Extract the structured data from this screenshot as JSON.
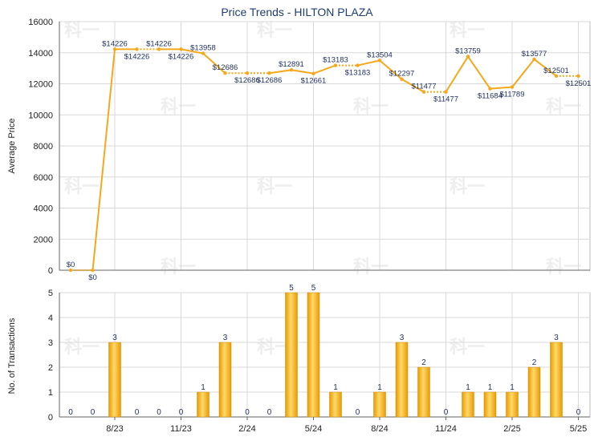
{
  "chart_data": [
    {
      "type": "line",
      "title": "Price Trends - HILTON PLAZA",
      "ylabel": "Average Price",
      "ylim": [
        0,
        16000
      ],
      "yticks": [
        0,
        2000,
        4000,
        6000,
        8000,
        10000,
        12000,
        14000,
        16000
      ],
      "xtick_labels": [
        "8/23",
        "11/23",
        "2/24",
        "5/24",
        "8/24",
        "11/24",
        "2/25",
        "5/25"
      ],
      "xtick_positions": [
        2,
        5,
        8,
        11,
        14,
        17,
        20,
        23
      ],
      "x": [
        0,
        1,
        2,
        3,
        4,
        5,
        6,
        7,
        8,
        9,
        10,
        11,
        12,
        13,
        14,
        15,
        16,
        17,
        18,
        19,
        20,
        21,
        22,
        23
      ],
      "values": [
        0,
        0,
        14226,
        14226,
        14226,
        14226,
        13958,
        12686,
        12686,
        12686,
        12891,
        12661,
        13183,
        13183,
        13504,
        12297,
        11477,
        11477,
        13759,
        11684,
        11789,
        13577,
        12501,
        12501
      ],
      "labels": [
        "$0",
        "$0",
        "$14226",
        "$14226",
        "$14226",
        "$14226",
        "$13958",
        "$12686",
        "$12686",
        "$12686",
        "$12891",
        "$12661",
        "$13183",
        "$13183",
        "$13504",
        "$12297",
        "$11477",
        "$11477",
        "$13759",
        "$11684",
        "$11789",
        "$13577",
        "$12501",
        "$12501"
      ],
      "dotted_segments": [
        [
          0,
          1
        ],
        [
          3,
          4
        ],
        [
          7,
          8
        ],
        [
          8,
          9
        ],
        [
          12,
          13
        ],
        [
          16,
          17
        ],
        [
          22,
          23
        ]
      ],
      "grid": true,
      "color": "#f5a81c"
    },
    {
      "type": "bar",
      "ylabel": "No. of Transactions",
      "ylim": [
        0,
        5
      ],
      "yticks": [
        0,
        1,
        2,
        3,
        4,
        5
      ],
      "xtick_labels": [
        "8/23",
        "11/23",
        "2/24",
        "5/24",
        "8/24",
        "11/24",
        "2/25",
        "5/25"
      ],
      "xtick_positions": [
        2,
        5,
        8,
        11,
        14,
        17,
        20,
        23
      ],
      "x": [
        0,
        1,
        2,
        3,
        4,
        5,
        6,
        7,
        8,
        9,
        10,
        11,
        12,
        13,
        14,
        15,
        16,
        17,
        18,
        19,
        20,
        21,
        22,
        23
      ],
      "values": [
        0,
        0,
        3,
        0,
        0,
        0,
        1,
        3,
        0,
        0,
        5,
        5,
        1,
        0,
        1,
        3,
        2,
        0,
        1,
        1,
        1,
        2,
        3,
        0
      ],
      "grid": true,
      "color": "#f0a500"
    }
  ]
}
